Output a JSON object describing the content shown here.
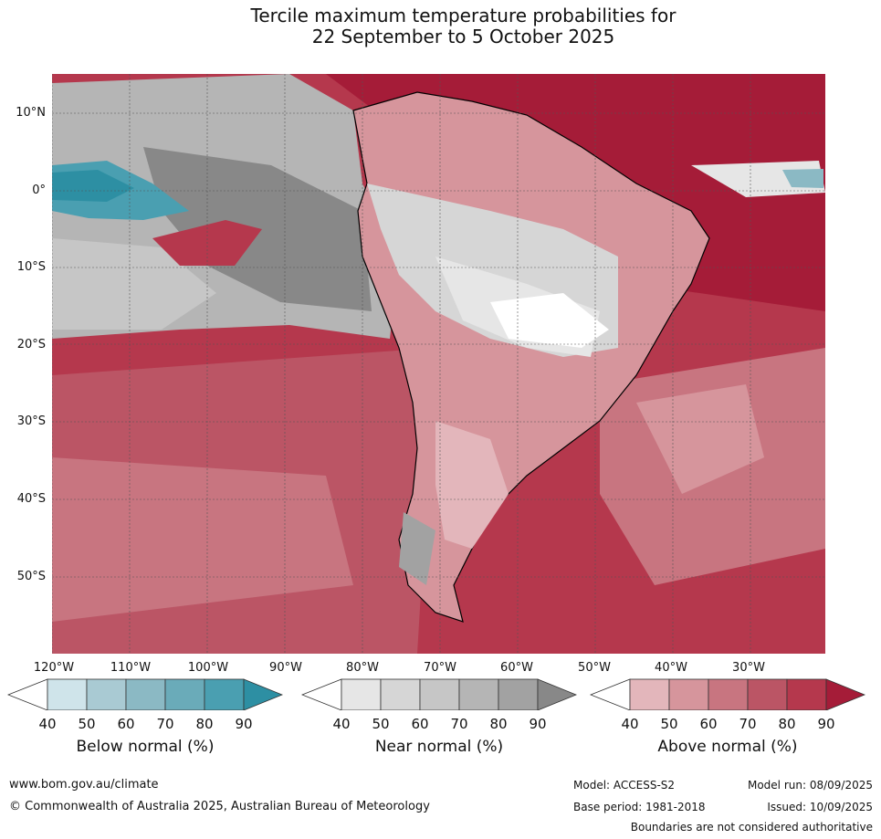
{
  "title": {
    "line1": "Tercile maximum temperature probabilities for",
    "line2": "22 September to 5 October 2025"
  },
  "map": {
    "lat_labels": [
      "10°N",
      "0°",
      "10°S",
      "20°S",
      "30°S",
      "40°S",
      "50°S"
    ],
    "lon_labels": [
      "120°W",
      "110°W",
      "100°W",
      "90°W",
      "80°W",
      "70°W",
      "60°W",
      "50°W",
      "40°W",
      "30°W"
    ],
    "region": "South America and surrounding oceans",
    "grid": true
  },
  "legends": [
    {
      "title": "Below normal (%)",
      "ticks": [
        "40",
        "50",
        "60",
        "70",
        "80",
        "90"
      ],
      "colors": [
        "#ffffff",
        "#cfe4ea",
        "#a9cad3",
        "#8bb9c4",
        "#6aabb9",
        "#4a9fb1",
        "#2d8fa3"
      ]
    },
    {
      "title": "Near normal (%)",
      "ticks": [
        "40",
        "50",
        "60",
        "70",
        "80",
        "90"
      ],
      "colors": [
        "#ffffff",
        "#e6e6e6",
        "#d6d6d6",
        "#c6c6c6",
        "#b5b5b5",
        "#a2a2a2",
        "#888888"
      ]
    },
    {
      "title": "Above normal (%)",
      "ticks": [
        "40",
        "50",
        "60",
        "70",
        "80",
        "90"
      ],
      "colors": [
        "#ffffff",
        "#e3b6bb",
        "#d6959c",
        "#c87580",
        "#bb5565",
        "#b5384d",
        "#a51c38"
      ]
    }
  ],
  "footer": {
    "url": "www.bom.gov.au/climate",
    "copyright": "© Commonwealth of Australia 2025, Australian Bureau of Meteorology",
    "model": "Model: ACCESS-S2",
    "model_run": "Model run: 08/09/2025",
    "base_period": "Base period: 1981-2018",
    "issued": "Issued: 10/09/2025",
    "disclaimer": "Boundaries are not considered authoritative"
  }
}
